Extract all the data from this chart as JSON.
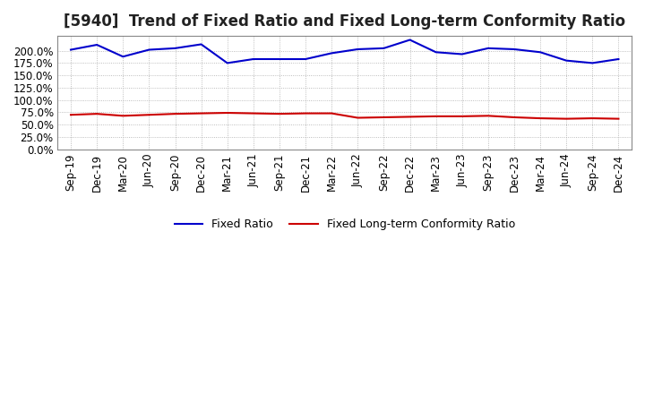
{
  "title": "[5940]  Trend of Fixed Ratio and Fixed Long-term Conformity Ratio",
  "x_labels": [
    "Sep-19",
    "Dec-19",
    "Mar-20",
    "Jun-20",
    "Sep-20",
    "Dec-20",
    "Mar-21",
    "Jun-21",
    "Sep-21",
    "Dec-21",
    "Mar-22",
    "Jun-22",
    "Sep-22",
    "Dec-22",
    "Mar-23",
    "Jun-23",
    "Sep-23",
    "Dec-23",
    "Mar-24",
    "Jun-24",
    "Sep-24",
    "Dec-24"
  ],
  "fixed_ratio": [
    202,
    212,
    188,
    202,
    205,
    213,
    175,
    183,
    183,
    183,
    195,
    203,
    205,
    222,
    197,
    193,
    205,
    203,
    197,
    180,
    175,
    183
  ],
  "fixed_lt_ratio": [
    70,
    72,
    68,
    70,
    72,
    73,
    74,
    73,
    72,
    73,
    73,
    64,
    65,
    66,
    67,
    67,
    68,
    65,
    63,
    62,
    63,
    62
  ],
  "fixed_ratio_color": "#0000cc",
  "fixed_lt_ratio_color": "#cc0000",
  "ylim": [
    0,
    230
  ],
  "yticks": [
    0,
    25,
    50,
    75,
    100,
    125,
    150,
    175,
    200
  ],
  "background_color": "#ffffff",
  "grid_color": "#aaaaaa",
  "title_fontsize": 12,
  "tick_fontsize": 8.5,
  "legend_fontsize": 9
}
